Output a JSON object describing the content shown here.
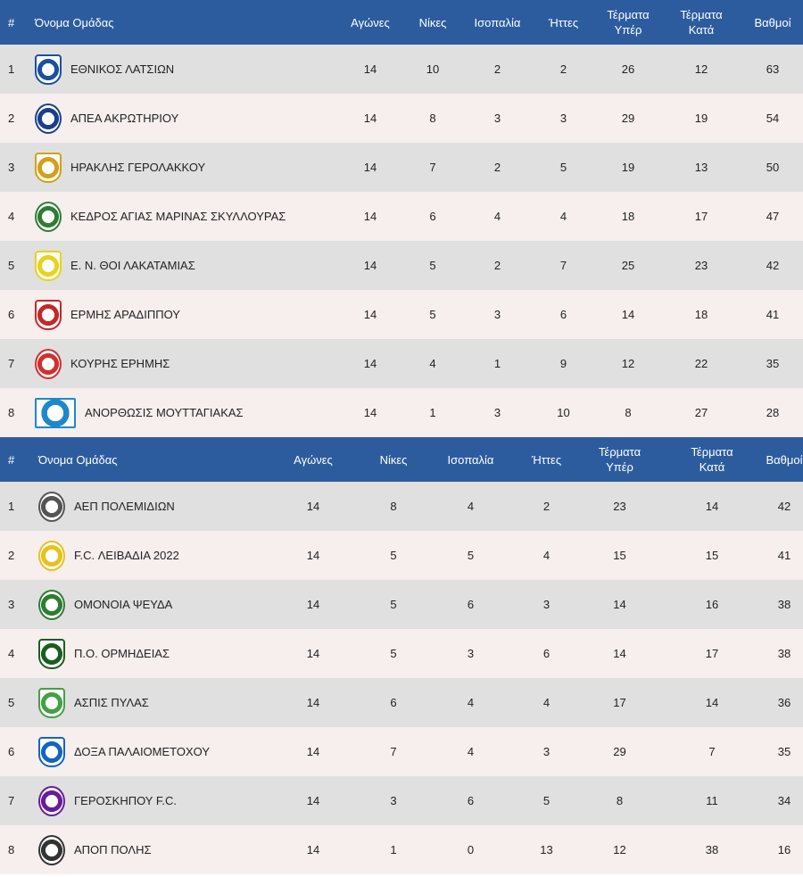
{
  "headers": {
    "rank": "#",
    "team": "Όνομα Ομάδας",
    "played": "Αγώνες",
    "wins": "Νίκες",
    "draws": "Ισοπαλία",
    "losses": "Ήττες",
    "goals_for": [
      "Τέρματα",
      "Υπέρ"
    ],
    "goals_against": [
      "Τέρματα",
      "Κατά"
    ],
    "points": "Βαθμοί"
  },
  "table1": [
    {
      "rank": "1",
      "team": "ΕΘΝΙΚΟΣ ΛΑΤΣΙΩΝ",
      "played": "14",
      "wins": "10",
      "draws": "2",
      "losses": "2",
      "gf": "26",
      "ga": "12",
      "pts": "63",
      "logo_icon": "ethnikos-latsion-crest-icon",
      "logo_color": "#1b4fa0",
      "logo_shape": "shield"
    },
    {
      "rank": "2",
      "team": "ΑΠΕΑ ΑΚΡΩΤΗΡΙΟΥ",
      "played": "14",
      "wins": "8",
      "draws": "3",
      "losses": "3",
      "gf": "29",
      "ga": "19",
      "pts": "54",
      "logo_icon": "flamingo-crest-icon",
      "logo_color": "#1b3f8f",
      "logo_shape": "circle"
    },
    {
      "rank": "3",
      "team": "ΗΡΑΚΛΗΣ ΓΕΡΟΛΑΚΚΟΥ",
      "played": "14",
      "wins": "7",
      "draws": "2",
      "losses": "5",
      "gf": "19",
      "ga": "13",
      "pts": "50",
      "logo_icon": "iraklis-crest-icon",
      "logo_color": "#d4a017",
      "logo_shape": "shield"
    },
    {
      "rank": "4",
      "team": "ΚΕΔΡΟΣ ΑΓΙΑΣ ΜΑΡΙΝΑΣ ΣΚΥΛΛΟΥΡΑΣ",
      "played": "14",
      "wins": "6",
      "draws": "4",
      "losses": "4",
      "gf": "18",
      "ga": "17",
      "pts": "47",
      "logo_icon": "cedar-tree-crest-icon",
      "logo_color": "#2e7d32",
      "logo_shape": "circle"
    },
    {
      "rank": "5",
      "team": "Ε. Ν. ΘΟΙ ΛΑΚΑΤΑΜΙΑΣ",
      "played": "14",
      "wins": "5",
      "draws": "2",
      "losses": "7",
      "gf": "25",
      "ga": "23",
      "pts": "42",
      "logo_icon": "thoi-crest-icon",
      "logo_color": "#e8d31a",
      "logo_shape": "shield"
    },
    {
      "rank": "6",
      "team": "ΕΡΜΗΣ ΑΡΑΔΙΠΠΟΥ",
      "played": "14",
      "wins": "5",
      "draws": "3",
      "losses": "6",
      "gf": "14",
      "ga": "18",
      "pts": "41",
      "logo_icon": "ermis-crest-icon",
      "logo_color": "#c62828",
      "logo_shape": "shield"
    },
    {
      "rank": "7",
      "team": "ΚΟΥΡΗΣ ΕΡΗΜΗΣ",
      "played": "14",
      "wins": "4",
      "draws": "1",
      "losses": "9",
      "gf": "12",
      "ga": "22",
      "pts": "35",
      "logo_icon": "kouris-crest-icon",
      "logo_color": "#d32f2f",
      "logo_shape": "circle"
    },
    {
      "rank": "8",
      "team": "ΑΝΟΡΘΩΣΙΣ ΜΟΥΤΤΑΓΙΑΚΑΣ",
      "played": "14",
      "wins": "1",
      "draws": "3",
      "losses": "10",
      "gf": "8",
      "ga": "27",
      "pts": "28",
      "logo_icon": "anorthosis-crest-icon",
      "logo_color": "#1e88c8",
      "logo_shape": "square"
    }
  ],
  "table2": [
    {
      "rank": "1",
      "team": "ΑΕΠ ΠΟΛΕΜΙΔΙΩΝ",
      "played": "14",
      "wins": "8",
      "draws": "4",
      "losses": "2",
      "gf": "23",
      "ga": "14",
      "pts": "42",
      "logo_icon": "aep-crest-icon",
      "logo_color": "#555555",
      "logo_shape": "circle"
    },
    {
      "rank": "2",
      "team": "F.C. ΛΕΙΒΑΔΙΑ 2022",
      "played": "14",
      "wins": "5",
      "draws": "5",
      "losses": "4",
      "gf": "15",
      "ga": "15",
      "pts": "41",
      "logo_icon": "leivadia-crest-icon",
      "logo_color": "#e6c21a",
      "logo_shape": "circle"
    },
    {
      "rank": "3",
      "team": "ΟΜΟΝΟΙΑ ΨΕΥΔΑ",
      "played": "14",
      "wins": "5",
      "draws": "6",
      "losses": "3",
      "gf": "14",
      "ga": "16",
      "pts": "38",
      "logo_icon": "clover-crest-icon",
      "logo_color": "#2e7d32",
      "logo_shape": "circle"
    },
    {
      "rank": "4",
      "team": "Π.Ο. ΟΡΜΗΔΕΙΑΣ",
      "played": "14",
      "wins": "5",
      "draws": "3",
      "losses": "6",
      "gf": "14",
      "ga": "17",
      "pts": "38",
      "logo_icon": "ormideia-crest-icon",
      "logo_color": "#1b5e20",
      "logo_shape": "shield"
    },
    {
      "rank": "5",
      "team": "ΑΣΠΙΣ ΠΥΛΑΣ",
      "played": "14",
      "wins": "6",
      "draws": "4",
      "losses": "4",
      "gf": "17",
      "ga": "14",
      "pts": "36",
      "logo_icon": "aspis-crest-icon",
      "logo_color": "#43a047",
      "logo_shape": "shield"
    },
    {
      "rank": "6",
      "team": "ΔΟΞΑ ΠΑΛΑΙΟΜΕΤΟΧΟΥ",
      "played": "14",
      "wins": "7",
      "draws": "4",
      "losses": "3",
      "gf": "29",
      "ga": "7",
      "pts": "35",
      "logo_icon": "doxa-crest-icon",
      "logo_color": "#1565c0",
      "logo_shape": "shield"
    },
    {
      "rank": "7",
      "team": "ΓΕΡΟΣΚΗΠΟΥ F.C.",
      "played": "14",
      "wins": "3",
      "draws": "6",
      "losses": "5",
      "gf": "8",
      "ga": "11",
      "pts": "34",
      "logo_icon": "geroskipou-crest-icon",
      "logo_color": "#6a1b9a",
      "logo_shape": "circle"
    },
    {
      "rank": "8",
      "team": "ΑΠΟΠ ΠΟΛΗΣ",
      "played": "14",
      "wins": "1",
      "draws": "0",
      "losses": "13",
      "gf": "12",
      "ga": "38",
      "pts": "16",
      "logo_icon": "pi-crest-icon",
      "logo_color": "#333333",
      "logo_shape": "circle"
    }
  ]
}
